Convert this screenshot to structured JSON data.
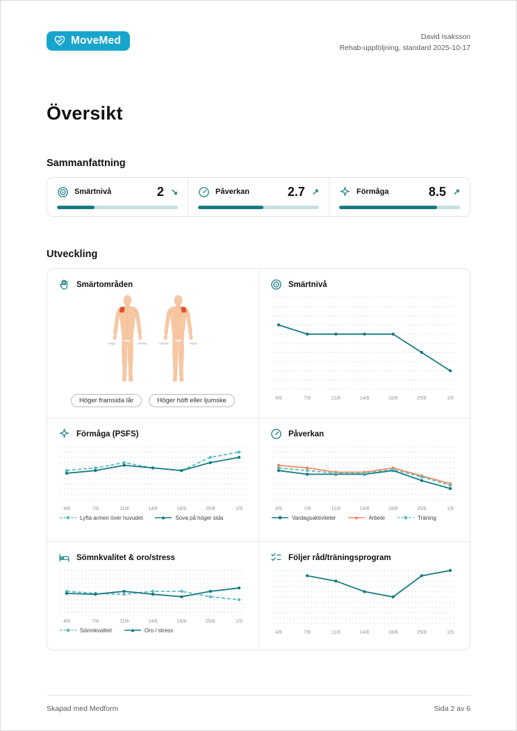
{
  "header": {
    "logo_text": "MoveMed",
    "patient_name": "David Isaksson",
    "report_subtitle": "Rehab-uppföljning, standard 2025-10-17"
  },
  "page_title": "Översikt",
  "sections": {
    "summary": "Sammanfattning",
    "development": "Utveckling"
  },
  "colors": {
    "teal_dark": "#147a80",
    "teal_light": "#5bbac2",
    "orange": "#ef8a60",
    "track_teal": "#c5e0de",
    "logo_cyan": "#17a5cd",
    "pain_red": "#e4512e",
    "gridline": "#dddfe2"
  },
  "summary_cards": [
    {
      "icon": "target-icon",
      "label": "Smärtnivå",
      "value": "2",
      "trend": "↘",
      "trend_dir": "down",
      "progress_pct": 31
    },
    {
      "icon": "gauge-icon",
      "label": "Påverkan",
      "value": "2.7",
      "trend": "↗",
      "trend_dir": "up",
      "progress_pct": 54
    },
    {
      "icon": "sparkle-icon",
      "label": "Förmåga",
      "value": "8.5",
      "trend": "↗",
      "trend_dir": "up",
      "progress_pct": 81
    }
  ],
  "body_map": {
    "title": "Smärtområden",
    "front_left_label": "Höger",
    "front_right_label": "Vänster",
    "back_left_label": "Vänster",
    "back_right_label": "Höger",
    "tags": [
      "Höger framsida lår",
      "Höger höft eller ljumske"
    ]
  },
  "chart_data": [
    {
      "type": "line",
      "title": "Smärtnivå",
      "x": [
        "4/8",
        "7/8",
        "11/8",
        "14/8",
        "18/8",
        "25/8",
        "1/9"
      ],
      "ylim": [
        0,
        10
      ],
      "grid": true,
      "legend": false,
      "series": [
        {
          "name": "Smärtnivå",
          "color": "dark",
          "dash": false,
          "marker": "circle",
          "values": [
            7,
            6,
            6,
            6,
            6,
            4,
            2
          ]
        }
      ]
    },
    {
      "type": "line",
      "title": "Förmåga (PSFS)",
      "x": [
        "4/8",
        "7/8",
        "11/8",
        "14/8",
        "18/8",
        "25/8",
        "1/9"
      ],
      "ylim": [
        0,
        10
      ],
      "grid": true,
      "legend": true,
      "legend_position": "bottom",
      "series": [
        {
          "name": "Lyfta armen över huvudet",
          "color": "light",
          "dash": true,
          "marker": "circle",
          "values": [
            5.5,
            6,
            7,
            6,
            5.5,
            8,
            9
          ]
        },
        {
          "name": "Sova på höger sida",
          "color": "dark",
          "dash": false,
          "marker": "triangle",
          "values": [
            5,
            5.5,
            6.5,
            6,
            5.5,
            7,
            8
          ]
        }
      ]
    },
    {
      "type": "line",
      "title": "Påverkan",
      "x": [
        "4/8",
        "7/8",
        "11/8",
        "14/8",
        "18/8",
        "25/8",
        "1/9"
      ],
      "ylim": [
        0,
        10
      ],
      "grid": true,
      "legend": true,
      "legend_position": "bottom",
      "series": [
        {
          "name": "Vardagsaktiviteter",
          "color": "dark",
          "dash": false,
          "marker": "circle",
          "values": [
            5.5,
            4.8,
            4.8,
            4.8,
            5.5,
            3.6,
            2.1
          ]
        },
        {
          "name": "Arbete",
          "color": "orange",
          "dash": false,
          "marker": "triangle",
          "values": [
            6.5,
            6,
            5.2,
            5.2,
            6,
            4.5,
            3
          ]
        },
        {
          "name": "Träning",
          "color": "light",
          "dash": true,
          "marker": "square",
          "values": [
            6,
            5.5,
            5,
            5,
            5.7,
            4.3,
            2.7
          ]
        }
      ]
    },
    {
      "type": "line",
      "title": "Sömnkvalitet & oro/stress",
      "x": [
        "4/8",
        "7/8",
        "11/8",
        "14/8",
        "18/8",
        "25/8",
        "1/9"
      ],
      "ylim": [
        0,
        10
      ],
      "grid": true,
      "legend": true,
      "legend_position": "bottom",
      "series": [
        {
          "name": "Sömnkvalitet",
          "color": "light",
          "dash": true,
          "marker": "circle",
          "values": [
            5,
            4.5,
            4.3,
            5,
            5,
            3.7,
            3
          ]
        },
        {
          "name": "Oro / stress",
          "color": "dark",
          "dash": false,
          "marker": "triangle",
          "values": [
            4.5,
            4.3,
            5,
            4.3,
            3.7,
            5,
            5.8
          ]
        }
      ]
    },
    {
      "type": "line",
      "title": "Följer råd/träningsprogram",
      "x": [
        "4/8",
        "7/8",
        "11/8",
        "14/8",
        "18/8",
        "25/8",
        "1/9"
      ],
      "ylim": [
        0,
        10
      ],
      "grid": true,
      "legend": false,
      "series": [
        {
          "name": "Följer råd/träningsprogram",
          "color": "dark",
          "dash": false,
          "marker": "circle",
          "values": [
            null,
            9,
            8,
            6,
            5,
            9,
            10
          ]
        }
      ]
    }
  ],
  "footer": {
    "left": "Skapad med Medform",
    "right": "Sida 2 av 6"
  }
}
